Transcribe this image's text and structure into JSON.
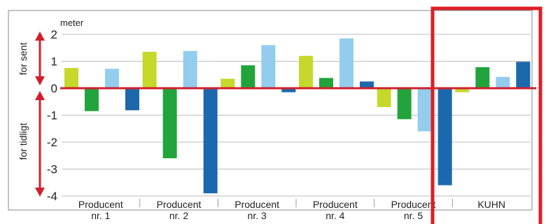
{
  "chart_data": {
    "type": "bar",
    "unit_label": "meter",
    "categories": [
      [
        "Producent",
        "nr. 1"
      ],
      [
        "Producent",
        "nr. 2"
      ],
      [
        "Producent",
        "nr. 3"
      ],
      [
        "Producent",
        "nr. 4"
      ],
      [
        "Producent",
        "nr. 5"
      ],
      [
        "KUHN"
      ]
    ],
    "series": [
      {
        "color": "#c6d82c",
        "values": [
          0.75,
          1.35,
          0.35,
          1.2,
          -0.7,
          -0.15
        ]
      },
      {
        "color": "#22a43c",
        "values": [
          -0.85,
          -2.6,
          0.85,
          0.38,
          -1.15,
          0.78
        ]
      },
      {
        "color": "#93cdee",
        "values": [
          0.72,
          1.38,
          1.6,
          1.85,
          -1.6,
          0.42
        ]
      },
      {
        "color": "#1c68ad",
        "values": [
          -0.82,
          -3.9,
          -0.15,
          0.25,
          -3.6,
          0.98
        ]
      }
    ],
    "ylim": [
      -4,
      2
    ],
    "y_ticks": [
      "2",
      "1",
      "0",
      "-1",
      "-2",
      "-3",
      "-4"
    ],
    "grid": true,
    "zero_line_color": "#d0202c",
    "side_labels": {
      "late": "for sent",
      "early": "for tidligt"
    },
    "arrow_color": "#d0202c",
    "highlight": {
      "category": "KUHN",
      "color": "#dd1f26"
    }
  }
}
